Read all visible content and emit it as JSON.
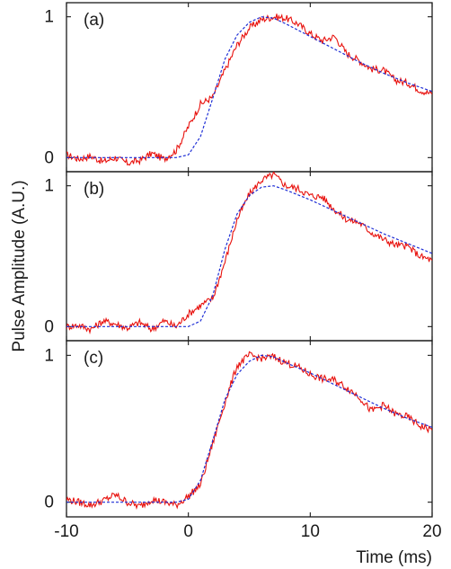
{
  "chart_data": {
    "type": "line",
    "xlabel": "Time (ms)",
    "ylabel": "Pulse Amplitude (A.U.)",
    "xlim": [
      -10,
      20
    ],
    "x_ticks": [
      "-10",
      "0",
      "10",
      "20"
    ],
    "y_ticks": [
      "0",
      "1"
    ],
    "line_colors": {
      "measured": "#e8120e",
      "fit": "#1f2fd6"
    },
    "panels": [
      {
        "label": "(a)",
        "ylim": [
          -0.1,
          1.1
        ],
        "fit": {
          "x": [
            -10,
            -1,
            0,
            1,
            2,
            3,
            4,
            5,
            6,
            7,
            8,
            10,
            12,
            14,
            16,
            18,
            20
          ],
          "y": [
            0,
            0,
            0.02,
            0.15,
            0.42,
            0.7,
            0.87,
            0.96,
            1.0,
            0.99,
            0.95,
            0.86,
            0.77,
            0.68,
            0.6,
            0.53,
            0.47
          ]
        },
        "measured": {
          "x": [
            -10,
            -9,
            -8,
            -7,
            -6,
            -5,
            -4,
            -3,
            -2,
            -1,
            0,
            1,
            2,
            3,
            4,
            5,
            6,
            7,
            8,
            9,
            10,
            11,
            12,
            13,
            14,
            15,
            16,
            17,
            18,
            19,
            20
          ],
          "y": [
            0.02,
            -0.01,
            0.01,
            -0.03,
            0.0,
            -0.04,
            -0.02,
            0.03,
            -0.01,
            0.05,
            0.22,
            0.38,
            0.43,
            0.62,
            0.8,
            0.92,
            0.98,
            1.0,
            0.99,
            0.95,
            0.88,
            0.83,
            0.86,
            0.74,
            0.69,
            0.63,
            0.62,
            0.55,
            0.53,
            0.48,
            0.45
          ]
        }
      },
      {
        "label": "(b)",
        "ylim": [
          -0.1,
          1.1
        ],
        "fit": {
          "x": [
            -10,
            -1,
            0,
            1,
            2,
            3,
            4,
            5,
            6,
            7,
            8,
            10,
            12,
            14,
            16,
            18,
            20
          ],
          "y": [
            0,
            0,
            0.0,
            0.04,
            0.22,
            0.55,
            0.8,
            0.93,
            0.99,
            1.0,
            0.97,
            0.9,
            0.82,
            0.74,
            0.66,
            0.59,
            0.52
          ]
        },
        "measured": {
          "x": [
            -10,
            -9,
            -8,
            -7,
            -6,
            -5,
            -4,
            -3,
            -2,
            -1,
            0,
            1,
            2,
            3,
            4,
            5,
            6,
            7,
            8,
            9,
            10,
            11,
            12,
            13,
            14,
            15,
            16,
            17,
            18,
            19,
            20
          ],
          "y": [
            0.0,
            0.01,
            -0.02,
            0.04,
            0.02,
            -0.01,
            0.03,
            -0.02,
            0.04,
            0.0,
            0.09,
            0.15,
            0.2,
            0.46,
            0.76,
            0.94,
            1.04,
            1.08,
            1.0,
            0.98,
            0.93,
            0.92,
            0.83,
            0.76,
            0.74,
            0.67,
            0.62,
            0.58,
            0.57,
            0.5,
            0.47
          ]
        }
      },
      {
        "label": "(c)",
        "ylim": [
          -0.1,
          1.1
        ],
        "fit": {
          "x": [
            -10,
            -1,
            0,
            1,
            2,
            3,
            4,
            5,
            6,
            7,
            8,
            10,
            12,
            14,
            16,
            18,
            20
          ],
          "y": [
            0,
            0,
            0.02,
            0.15,
            0.42,
            0.7,
            0.87,
            0.96,
            1.0,
            0.99,
            0.95,
            0.88,
            0.8,
            0.72,
            0.64,
            0.57,
            0.51
          ]
        },
        "measured": {
          "x": [
            -10,
            -9,
            -8,
            -7,
            -6,
            -5,
            -4,
            -3,
            -2,
            -1,
            0,
            1,
            2,
            3,
            4,
            5,
            6,
            7,
            8,
            9,
            10,
            11,
            12,
            13,
            14,
            15,
            16,
            17,
            18,
            19,
            20
          ],
          "y": [
            0.02,
            0.0,
            -0.02,
            0.01,
            0.05,
            0.0,
            -0.03,
            0.02,
            0.0,
            -0.02,
            0.04,
            0.12,
            0.4,
            0.68,
            0.93,
            1.0,
            0.98,
            0.99,
            0.95,
            0.92,
            0.87,
            0.84,
            0.83,
            0.78,
            0.72,
            0.62,
            0.66,
            0.6,
            0.58,
            0.52,
            0.49
          ]
        }
      }
    ]
  }
}
